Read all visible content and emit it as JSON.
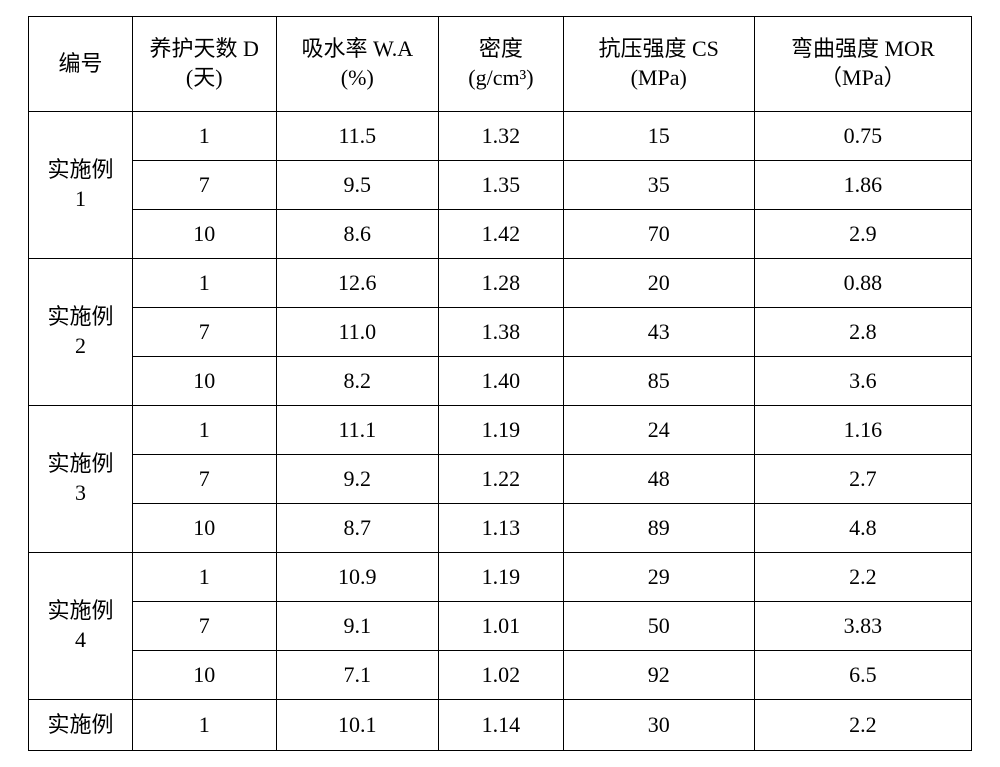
{
  "table": {
    "type": "table",
    "background_color": "#ffffff",
    "border_color": "#000000",
    "font_family": "SimSun / Times New Roman",
    "header_fontsize_pt": 16,
    "cell_fontsize_pt": 16,
    "columns": [
      {
        "key": "id",
        "label_line1": "编号",
        "label_line2": "",
        "width_pct": 11.0,
        "align": "center"
      },
      {
        "key": "days",
        "label_line1": "养护天数 D",
        "label_line2": "(天)",
        "width_pct": 15.2,
        "align": "center"
      },
      {
        "key": "wa",
        "label_line1": "吸水率 W.A",
        "label_line2": "(%)",
        "width_pct": 17.2,
        "align": "center"
      },
      {
        "key": "density",
        "label_line1": "密度",
        "label_line2": "(g/cm³)",
        "width_pct": 13.2,
        "align": "center"
      },
      {
        "key": "cs",
        "label_line1": "抗压强度 CS",
        "label_line2": "(MPa)",
        "width_pct": 20.2,
        "align": "center"
      },
      {
        "key": "mor",
        "label_line1": "弯曲强度 MOR",
        "label_line2": "（MPa）",
        "width_pct": 23.0,
        "align": "center"
      }
    ],
    "groups": [
      {
        "label_line1": "实施例",
        "label_line2": "1",
        "rows": [
          {
            "days": "1",
            "wa": "11.5",
            "density": "1.32",
            "cs": "15",
            "mor": "0.75"
          },
          {
            "days": "7",
            "wa": "9.5",
            "density": "1.35",
            "cs": "35",
            "mor": "1.86"
          },
          {
            "days": "10",
            "wa": "8.6",
            "density": "1.42",
            "cs": "70",
            "mor": "2.9"
          }
        ]
      },
      {
        "label_line1": "实施例",
        "label_line2": "2",
        "rows": [
          {
            "days": "1",
            "wa": "12.6",
            "density": "1.28",
            "cs": "20",
            "mor": "0.88"
          },
          {
            "days": "7",
            "wa": "11.0",
            "density": "1.38",
            "cs": "43",
            "mor": "2.8"
          },
          {
            "days": "10",
            "wa": "8.2",
            "density": "1.40",
            "cs": "85",
            "mor": "3.6"
          }
        ]
      },
      {
        "label_line1": "实施例",
        "label_line2": "3",
        "rows": [
          {
            "days": "1",
            "wa": "11.1",
            "density": "1.19",
            "cs": "24",
            "mor": "1.16"
          },
          {
            "days": "7",
            "wa": "9.2",
            "density": "1.22",
            "cs": "48",
            "mor": "2.7"
          },
          {
            "days": "10",
            "wa": "8.7",
            "density": "1.13",
            "cs": "89",
            "mor": "4.8"
          }
        ]
      },
      {
        "label_line1": "实施例",
        "label_line2": "4",
        "rows": [
          {
            "days": "1",
            "wa": "10.9",
            "density": "1.19",
            "cs": "29",
            "mor": "2.2"
          },
          {
            "days": "7",
            "wa": "9.1",
            "density": "1.01",
            "cs": "50",
            "mor": "3.83"
          },
          {
            "days": "10",
            "wa": "7.1",
            "density": "1.02",
            "cs": "92",
            "mor": "6.5"
          }
        ]
      },
      {
        "label_line1": "实施例",
        "label_line2": "",
        "rows": [
          {
            "days": "1",
            "wa": "10.1",
            "density": "1.14",
            "cs": "30",
            "mor": "2.2"
          }
        ]
      }
    ]
  }
}
